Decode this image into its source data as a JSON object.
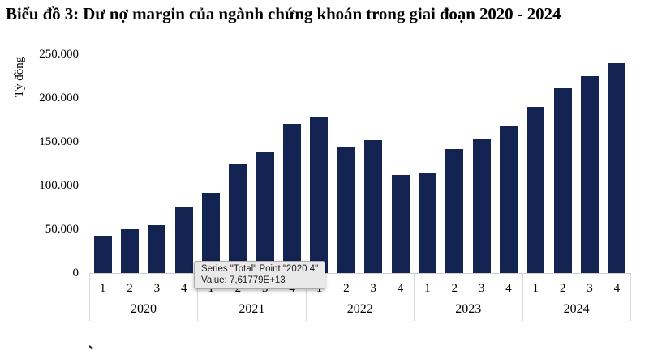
{
  "title": "Biểu đồ 3: Dư nợ margin của ngành chứng khoán trong giai đoạn 2020 - 2024",
  "y_axis": {
    "title": "Tỷ đồng",
    "tick_labels": [
      "250.000",
      "200.000",
      "150.000",
      "100.000",
      "50.000",
      "0"
    ]
  },
  "tooltip": {
    "line1": "Series \"Total\" Point \"2020 4\"",
    "line2": "Value: 7,61779E+13"
  },
  "colors": {
    "bar": "#132352",
    "axis_line": "#d9d9d9",
    "tooltip_bg": "#e9e9e9",
    "tooltip_border": "#ababab"
  },
  "chart_data": {
    "type": "bar",
    "title": "Biểu đồ 3: Dư nợ margin của ngành chứng khoán trong giai đoạn 2020 - 2024",
    "ylabel": "Tỷ đồng",
    "xlabel": "",
    "unit": "tỷ đồng",
    "ylim": [
      0,
      250000
    ],
    "ytick_step": 50000,
    "grid": false,
    "legend": false,
    "years": [
      "2020",
      "2021",
      "2022",
      "2023",
      "2024"
    ],
    "quarters": [
      "1",
      "2",
      "3",
      "4"
    ],
    "series": [
      {
        "name": "Total",
        "values": [
          43000,
          50000,
          54500,
          76178,
          92000,
          124000,
          139000,
          170000,
          179000,
          144500,
          152000,
          112000,
          115000,
          142000,
          154000,
          167500,
          190000,
          211000,
          225000,
          240000
        ]
      }
    ],
    "highlighted_point": {
      "series": "Total",
      "category": "2020 4",
      "value_raw": "7,61779E+13",
      "value_ty_dong": 76177.9
    }
  }
}
